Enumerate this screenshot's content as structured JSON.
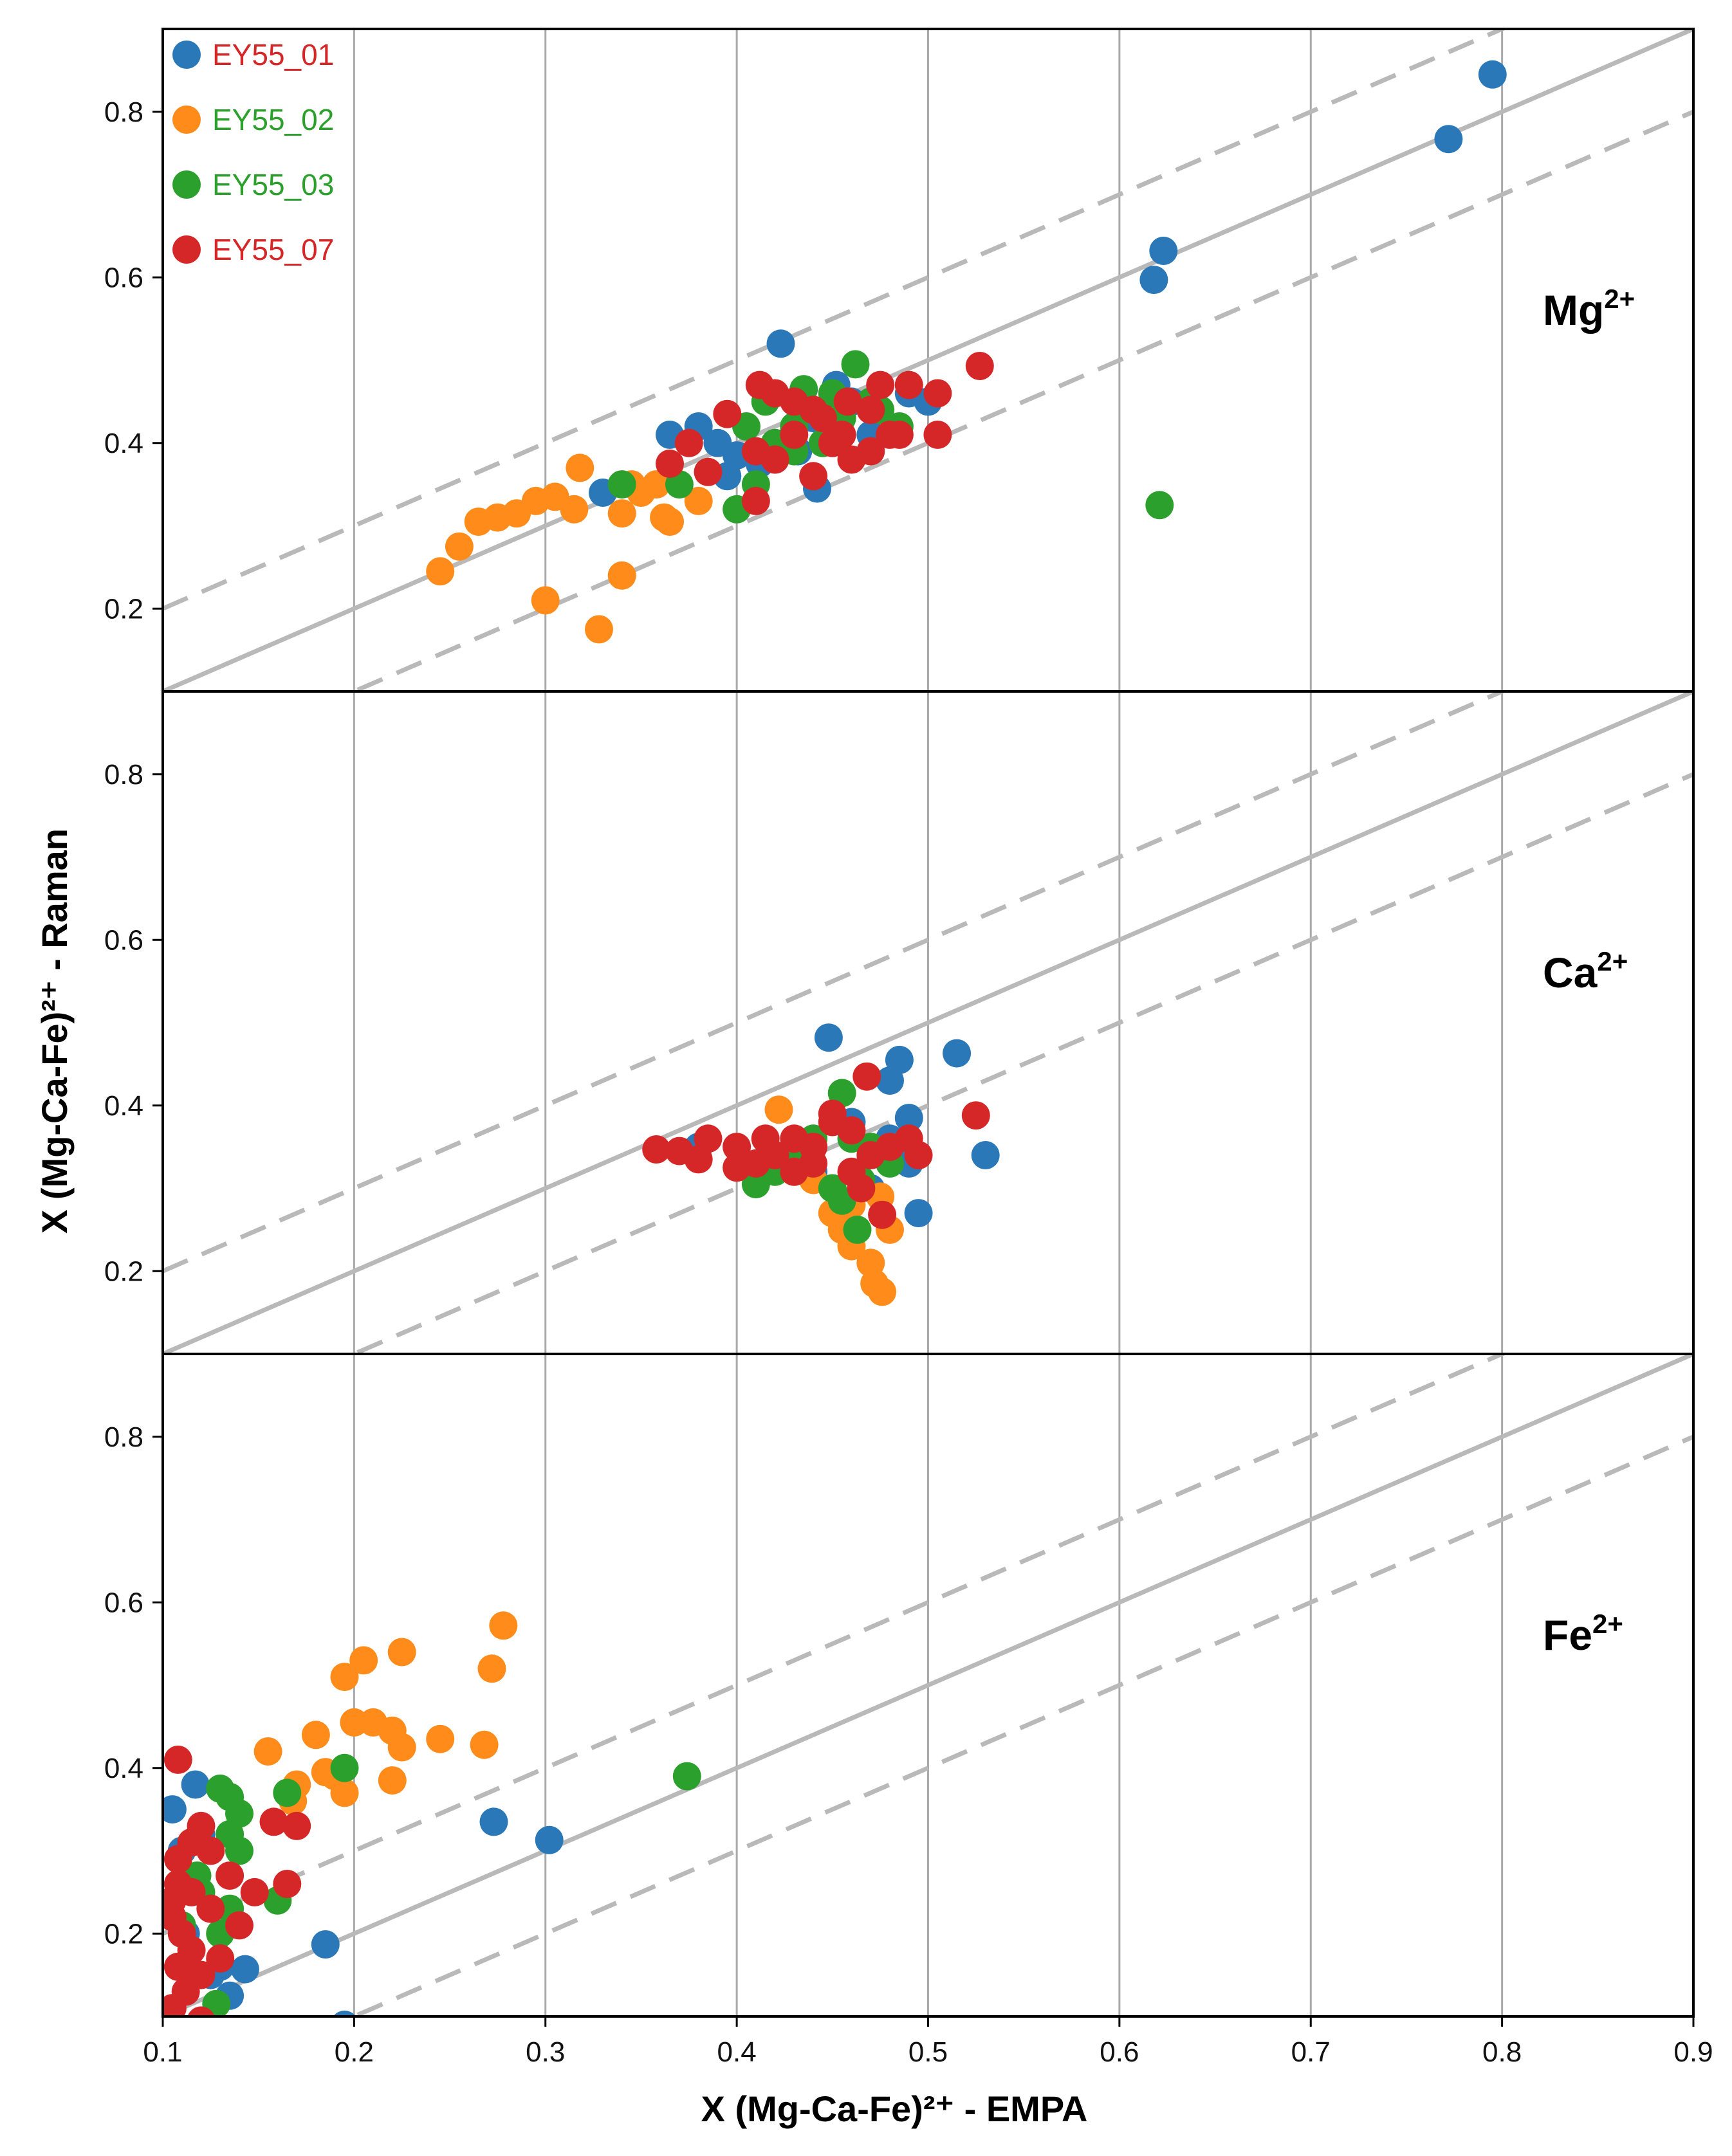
{
  "chart_data": {
    "type": "scatter",
    "xlabel": "X (Mg-Ca-Fe)²⁺ - EMPA",
    "ylabel": "X (Mg-Ca-Fe)²⁺ - Raman",
    "xlim": [
      0.1,
      0.9
    ],
    "ylim": [
      0.1,
      0.9
    ],
    "xticks": [
      "0.1",
      "0.2",
      "0.3",
      "0.4",
      "0.5",
      "0.6",
      "0.7",
      "0.8",
      "0.9"
    ],
    "yticks": [
      "0.2",
      "0.4",
      "0.6",
      "0.8"
    ],
    "reference_lines": {
      "identity": "y = x",
      "upper": "y = x + 0.1",
      "lower": "y = x - 0.1"
    },
    "legend": {
      "placement": "top-left",
      "entries": [
        {
          "label": "EY55_01",
          "marker_color": "#2b78b8",
          "text_color": "#d62728"
        },
        {
          "label": "EY55_02",
          "marker_color": "#ff8c1a",
          "text_color": "#2ca02c"
        },
        {
          "label": "EY55_03",
          "marker_color": "#2ca02c",
          "text_color": "#2ca02c"
        },
        {
          "label": "EY55_07",
          "marker_color": "#d62728",
          "text_color": "#d62728"
        }
      ]
    },
    "panels": [
      {
        "ion": "Mg",
        "charge": "2+",
        "series": [
          {
            "name": "EY55_01",
            "color": "#2b78b8",
            "points": [
              [
                0.795,
                0.845
              ],
              [
                0.772,
                0.767
              ],
              [
                0.623,
                0.632
              ],
              [
                0.618,
                0.597
              ],
              [
                0.423,
                0.52
              ],
              [
                0.442,
                0.345
              ],
              [
                0.365,
                0.41
              ],
              [
                0.38,
                0.42
              ],
              [
                0.39,
                0.4
              ],
              [
                0.4,
                0.385
              ],
              [
                0.412,
                0.375
              ],
              [
                0.432,
                0.39
              ],
              [
                0.452,
                0.47
              ],
              [
                0.46,
                0.45
              ],
              [
                0.49,
                0.46
              ],
              [
                0.33,
                0.34
              ],
              [
                0.395,
                0.36
              ],
              [
                0.42,
                0.38
              ],
              [
                0.44,
                0.43
              ],
              [
                0.47,
                0.41
              ],
              [
                0.5,
                0.45
              ]
            ]
          },
          {
            "name": "EY55_02",
            "color": "#ff8c1a",
            "points": [
              [
                0.245,
                0.245
              ],
              [
                0.255,
                0.275
              ],
              [
                0.265,
                0.305
              ],
              [
                0.275,
                0.31
              ],
              [
                0.285,
                0.315
              ],
              [
                0.295,
                0.33
              ],
              [
                0.305,
                0.335
              ],
              [
                0.315,
                0.32
              ],
              [
                0.318,
                0.37
              ],
              [
                0.34,
                0.315
              ],
              [
                0.345,
                0.35
              ],
              [
                0.362,
                0.31
              ],
              [
                0.365,
                0.305
              ],
              [
                0.38,
                0.33
              ],
              [
                0.34,
                0.24
              ],
              [
                0.3,
                0.21
              ],
              [
                0.328,
                0.175
              ],
              [
                0.35,
                0.34
              ],
              [
                0.358,
                0.35
              ]
            ]
          },
          {
            "name": "EY55_03",
            "color": "#2ca02c",
            "points": [
              [
                0.621,
                0.325
              ],
              [
                0.462,
                0.495
              ],
              [
                0.435,
                0.465
              ],
              [
                0.415,
                0.45
              ],
              [
                0.405,
                0.42
              ],
              [
                0.42,
                0.4
              ],
              [
                0.43,
                0.39
              ],
              [
                0.445,
                0.4
              ],
              [
                0.455,
                0.43
              ],
              [
                0.37,
                0.35
              ],
              [
                0.34,
                0.35
              ],
              [
                0.4,
                0.32
              ],
              [
                0.43,
                0.42
              ],
              [
                0.47,
                0.45
              ],
              [
                0.485,
                0.42
              ],
              [
                0.41,
                0.35
              ],
              [
                0.45,
                0.46
              ],
              [
                0.475,
                0.44
              ]
            ]
          },
          {
            "name": "EY55_07",
            "color": "#d62728",
            "points": [
              [
                0.527,
                0.493
              ],
              [
                0.505,
                0.46
              ],
              [
                0.505,
                0.41
              ],
              [
                0.49,
                0.47
              ],
              [
                0.475,
                0.47
              ],
              [
                0.47,
                0.44
              ],
              [
                0.458,
                0.45
              ],
              [
                0.445,
                0.43
              ],
              [
                0.43,
                0.41
              ],
              [
                0.412,
                0.47
              ],
              [
                0.42,
                0.46
              ],
              [
                0.395,
                0.435
              ],
              [
                0.375,
                0.4
              ],
              [
                0.365,
                0.375
              ],
              [
                0.385,
                0.365
              ],
              [
                0.41,
                0.33
              ],
              [
                0.42,
                0.38
              ],
              [
                0.44,
                0.36
              ],
              [
                0.45,
                0.4
              ],
              [
                0.46,
                0.38
              ],
              [
                0.48,
                0.41
              ],
              [
                0.485,
                0.41
              ],
              [
                0.47,
                0.39
              ],
              [
                0.43,
                0.45
              ],
              [
                0.455,
                0.41
              ],
              [
                0.44,
                0.44
              ],
              [
                0.41,
                0.39
              ]
            ]
          }
        ]
      },
      {
        "ion": "Ca",
        "charge": "2+",
        "series": [
          {
            "name": "EY55_01",
            "color": "#2b78b8",
            "points": [
              [
                0.448,
                0.482
              ],
              [
                0.515,
                0.463
              ],
              [
                0.485,
                0.455
              ],
              [
                0.53,
                0.34
              ],
              [
                0.495,
                0.27
              ],
              [
                0.49,
                0.385
              ],
              [
                0.49,
                0.33
              ],
              [
                0.48,
                0.43
              ],
              [
                0.48,
                0.36
              ],
              [
                0.46,
                0.38
              ],
              [
                0.47,
                0.3
              ],
              [
                0.44,
                0.32
              ],
              [
                0.38,
                0.35
              ]
            ]
          },
          {
            "name": "EY55_02",
            "color": "#ff8c1a",
            "points": [
              [
                0.476,
                0.175
              ],
              [
                0.472,
                0.185
              ],
              [
                0.47,
                0.21
              ],
              [
                0.46,
                0.23
              ],
              [
                0.455,
                0.25
              ],
              [
                0.48,
                0.25
              ],
              [
                0.46,
                0.28
              ],
              [
                0.475,
                0.29
              ],
              [
                0.422,
                0.395
              ],
              [
                0.44,
                0.31
              ],
              [
                0.45,
                0.27
              ]
            ]
          },
          {
            "name": "EY55_03",
            "color": "#2ca02c",
            "points": [
              [
                0.455,
                0.415
              ],
              [
                0.463,
                0.25
              ],
              [
                0.42,
                0.32
              ],
              [
                0.43,
                0.33
              ],
              [
                0.45,
                0.3
              ],
              [
                0.455,
                0.285
              ],
              [
                0.465,
                0.31
              ],
              [
                0.47,
                0.35
              ],
              [
                0.48,
                0.33
              ],
              [
                0.46,
                0.36
              ],
              [
                0.41,
                0.305
              ],
              [
                0.44,
                0.36
              ]
            ]
          },
          {
            "name": "EY55_07",
            "color": "#d62728",
            "points": [
              [
                0.358,
                0.347
              ],
              [
                0.37,
                0.345
              ],
              [
                0.38,
                0.335
              ],
              [
                0.385,
                0.36
              ],
              [
                0.4,
                0.325
              ],
              [
                0.4,
                0.35
              ],
              [
                0.41,
                0.33
              ],
              [
                0.42,
                0.34
              ],
              [
                0.43,
                0.36
              ],
              [
                0.44,
                0.35
              ],
              [
                0.45,
                0.38
              ],
              [
                0.46,
                0.37
              ],
              [
                0.47,
                0.34
              ],
              [
                0.48,
                0.35
              ],
              [
                0.49,
                0.36
              ],
              [
                0.495,
                0.34
              ],
              [
                0.468,
                0.435
              ],
              [
                0.525,
                0.388
              ],
              [
                0.476,
                0.268
              ],
              [
                0.46,
                0.32
              ],
              [
                0.45,
                0.39
              ],
              [
                0.43,
                0.32
              ],
              [
                0.415,
                0.36
              ],
              [
                0.44,
                0.33
              ],
              [
                0.465,
                0.3
              ]
            ]
          }
        ]
      },
      {
        "ion": "Fe",
        "charge": "2+",
        "series": [
          {
            "name": "EY55_01",
            "color": "#2b78b8",
            "points": [
              [
                0.273,
                0.335
              ],
              [
                0.302,
                0.313
              ],
              [
                0.185,
                0.187
              ],
              [
                0.143,
                0.157
              ],
              [
                0.135,
                0.125
              ],
              [
                0.105,
                0.35
              ],
              [
                0.117,
                0.38
              ],
              [
                0.12,
                0.32
              ],
              [
                0.11,
                0.3
              ],
              [
                0.112,
                0.2
              ],
              [
                0.125,
                0.15
              ],
              [
                0.13,
                0.16
              ],
              [
                0.195,
                0.09
              ]
            ]
          },
          {
            "name": "EY55_02",
            "color": "#ff8c1a",
            "points": [
              [
                0.278,
                0.572
              ],
              [
                0.272,
                0.52
              ],
              [
                0.268,
                0.428
              ],
              [
                0.245,
                0.435
              ],
              [
                0.225,
                0.54
              ],
              [
                0.22,
                0.445
              ],
              [
                0.225,
                0.425
              ],
              [
                0.22,
                0.385
              ],
              [
                0.205,
                0.53
              ],
              [
                0.195,
                0.51
              ],
              [
                0.2,
                0.455
              ],
              [
                0.21,
                0.455
              ],
              [
                0.19,
                0.39
              ],
              [
                0.195,
                0.37
              ],
              [
                0.18,
                0.44
              ],
              [
                0.17,
                0.38
              ],
              [
                0.168,
                0.36
              ],
              [
                0.155,
                0.42
              ],
              [
                0.185,
                0.395
              ]
            ]
          },
          {
            "name": "EY55_03",
            "color": "#2ca02c",
            "points": [
              [
                0.374,
                0.39
              ],
              [
                0.195,
                0.4
              ],
              [
                0.165,
                0.37
              ],
              [
                0.13,
                0.375
              ],
              [
                0.135,
                0.365
              ],
              [
                0.14,
                0.345
              ],
              [
                0.135,
                0.32
              ],
              [
                0.14,
                0.3
              ],
              [
                0.16,
                0.24
              ],
              [
                0.12,
                0.25
              ],
              [
                0.11,
                0.21
              ],
              [
                0.13,
                0.2
              ],
              [
                0.128,
                0.115
              ],
              [
                0.135,
                0.23
              ],
              [
                0.118,
                0.27
              ]
            ]
          },
          {
            "name": "EY55_07",
            "color": "#d62728",
            "points": [
              [
                0.108,
                0.41
              ],
              [
                0.158,
                0.335
              ],
              [
                0.17,
                0.33
              ],
              [
                0.165,
                0.26
              ],
              [
                0.148,
                0.25
              ],
              [
                0.135,
                0.27
              ],
              [
                0.125,
                0.3
              ],
              [
                0.12,
                0.33
              ],
              [
                0.115,
                0.31
              ],
              [
                0.108,
                0.29
              ],
              [
                0.108,
                0.26
              ],
              [
                0.105,
                0.24
              ],
              [
                0.105,
                0.22
              ],
              [
                0.11,
                0.2
              ],
              [
                0.115,
                0.18
              ],
              [
                0.108,
                0.16
              ],
              [
                0.12,
                0.15
              ],
              [
                0.112,
                0.13
              ],
              [
                0.105,
                0.11
              ],
              [
                0.12,
                0.095
              ],
              [
                0.13,
                0.17
              ],
              [
                0.14,
                0.21
              ],
              [
                0.125,
                0.23
              ],
              [
                0.115,
                0.25
              ]
            ]
          }
        ]
      }
    ]
  }
}
